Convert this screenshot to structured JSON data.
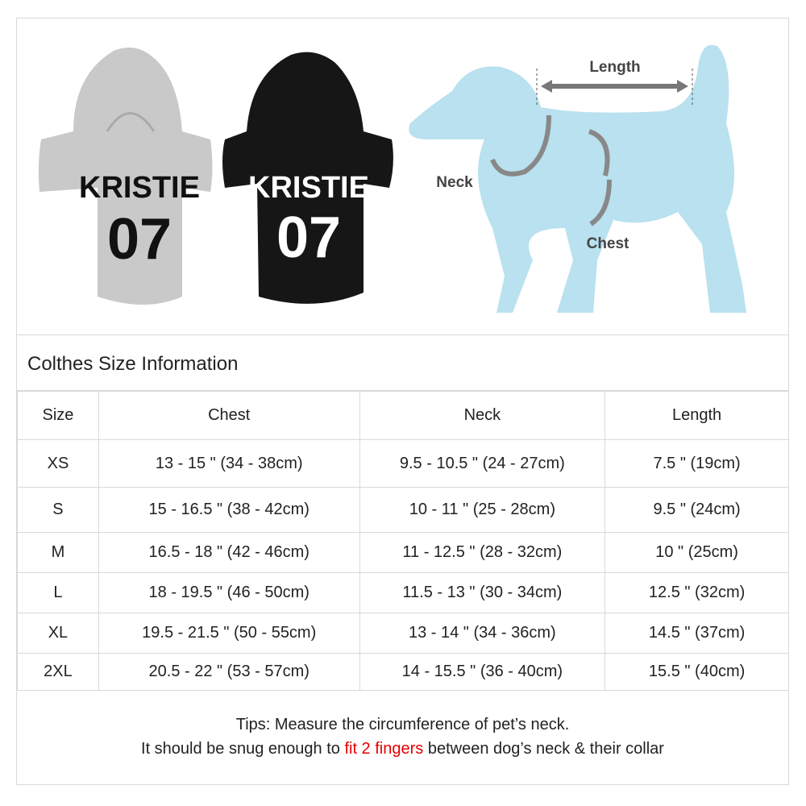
{
  "hero": {
    "hoodie_grey": {
      "name": "KRISTIE",
      "number": "07",
      "color": "#c8c8c8"
    },
    "hoodie_black": {
      "name": "KRISTIE",
      "number": "07",
      "color": "#1a1a1a"
    },
    "dog_diagram": {
      "length_label": "Length",
      "neck_label": "Neck",
      "chest_label": "Chest",
      "dog_color": "#b9e1ef"
    }
  },
  "title": "Colthes Size Information",
  "table": {
    "headers": [
      "Size",
      "Chest",
      "Neck",
      "Length"
    ],
    "rows": [
      [
        "XS",
        "13 - 15 \" (34 - 38cm)",
        "9.5 - 10.5 \" (24 - 27cm)",
        "7.5 \" (19cm)"
      ],
      [
        "S",
        "15 - 16.5 \" (38 - 42cm)",
        "10 - 11 \" (25 - 28cm)",
        "9.5 \" (24cm)"
      ],
      [
        "M",
        "16.5 - 18 \" (42 - 46cm)",
        "11 - 12.5 \" (28 - 32cm)",
        "10 \" (25cm)"
      ],
      [
        "L",
        "18 - 19.5 \" (46 - 50cm)",
        "11.5 - 13 \" (30 - 34cm)",
        "12.5 \" (32cm)"
      ],
      [
        "XL",
        "19.5 - 21.5 \" (50 - 55cm)",
        "13 - 14 \" (34 - 36cm)",
        "14.5 \" (37cm)"
      ],
      [
        "2XL",
        "20.5 - 22 \" (53 - 57cm)",
        "14 - 15.5 \" (36 - 40cm)",
        "15.5 \" (40cm)"
      ]
    ]
  },
  "tips": {
    "line1": "Tips: Measure the circumference of pet’s neck.",
    "line2_before": "It should be snug enough to ",
    "line2_highlight": "fit 2 fingers",
    "line2_after": " between dog’s neck & their collar",
    "highlight_color": "#e60000"
  }
}
